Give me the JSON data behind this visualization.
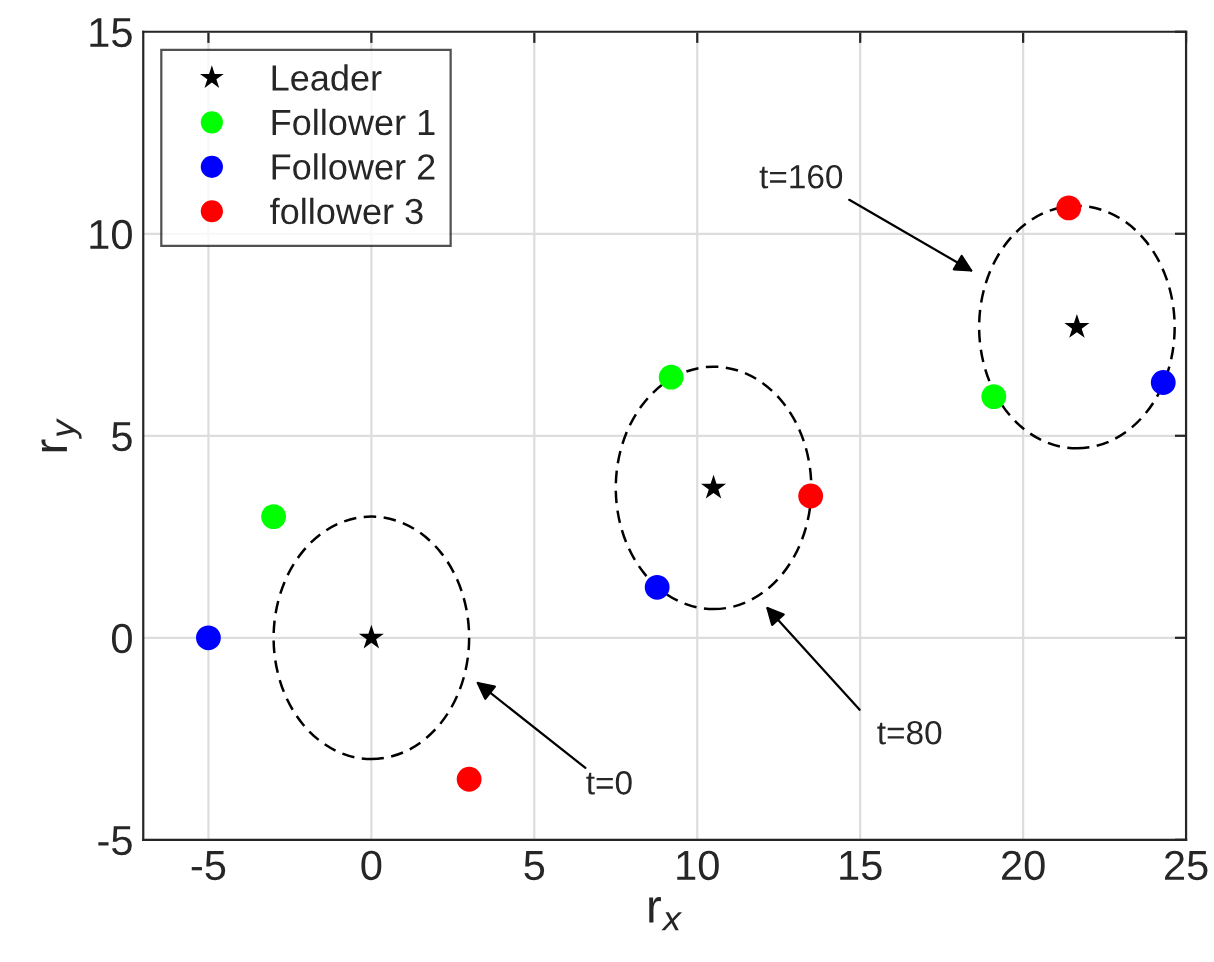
{
  "chart_data": {
    "type": "scatter",
    "xlabel": "r$_{x}$",
    "ylabel": "r$_{y}$",
    "xlim": [
      -7,
      25
    ],
    "ylim": [
      -5,
      15
    ],
    "xticks": [
      -5,
      0,
      5,
      10,
      15,
      20,
      25
    ],
    "yticks": [
      -5,
      0,
      5,
      10,
      15
    ],
    "grid": true,
    "legend": "top left",
    "series": [
      {
        "name": "Leader",
        "marker": "star",
        "color": "#000000",
        "x": [
          0,
          10.5,
          21.65
        ],
        "values": [
          0,
          3.71,
          7.69
        ]
      },
      {
        "name": "Follower 1",
        "marker": "circle",
        "color": "#00ff00",
        "x": [
          -3,
          9.2,
          19.1
        ],
        "values": [
          3,
          6.45,
          5.97
        ]
      },
      {
        "name": "Follower 2",
        "marker": "circle",
        "color": "#0000ff",
        "x": [
          -5,
          8.77,
          24.3
        ],
        "values": [
          0,
          1.25,
          6.32
        ]
      },
      {
        "name": "follower 3",
        "marker": "circle",
        "color": "#ff0000",
        "x": [
          3,
          13.48,
          21.4
        ],
        "values": [
          -3.5,
          3.51,
          10.64
        ]
      }
    ],
    "annotations": [
      "t=0",
      "t=80",
      "t=160"
    ]
  }
}
